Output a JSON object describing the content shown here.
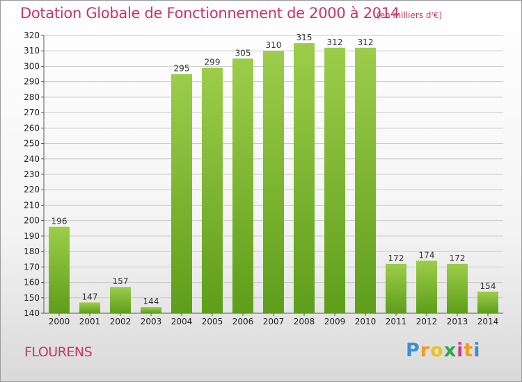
{
  "title": "Dotation Globale de Fonctionnement de 2000 à 2014",
  "unit_note": "(en milliers d'€)",
  "commune": "FLOURENS",
  "logo": {
    "text": "Proxiti"
  },
  "colors": {
    "title": "#cc3366",
    "bar_top": "#9ccd4a",
    "bar_bottom": "#5e9e1a",
    "grid": "#c8c8c8"
  },
  "chart_data": {
    "type": "bar",
    "title": "Dotation Globale de Fonctionnement de 2000 à 2014",
    "categories": [
      "2000",
      "2001",
      "2002",
      "2003",
      "2004",
      "2005",
      "2006",
      "2007",
      "2008",
      "2009",
      "2010",
      "2011",
      "2012",
      "2013",
      "2014"
    ],
    "values": [
      196,
      147,
      157,
      144,
      295,
      299,
      305,
      310,
      315,
      312,
      312,
      172,
      174,
      172,
      154
    ],
    "ylim": [
      140,
      320
    ],
    "ystep": 10,
    "grid": true,
    "xlabel": "",
    "ylabel": ""
  }
}
